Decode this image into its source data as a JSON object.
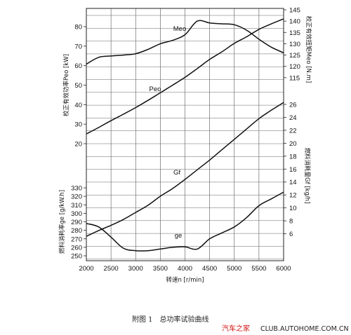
{
  "chart_data": {
    "type": "line",
    "x": [
      2000,
      2250,
      2500,
      2750,
      3000,
      3250,
      3500,
      3750,
      4000,
      4250,
      4500,
      4750,
      5000,
      5250,
      5500,
      5750,
      6000
    ],
    "xlabel": "转速n  [r/min]",
    "xticks": [
      2000,
      2500,
      3000,
      3500,
      4000,
      4500,
      5000,
      5500,
      6000
    ],
    "xlim": [
      2000,
      6000
    ],
    "grid": true,
    "axes": {
      "power": {
        "label": "校正有效功率Peo  [kW]",
        "side": "left",
        "lim": [
          20,
          80
        ],
        "ticks": [
          20,
          30,
          40,
          50,
          60,
          70,
          80
        ]
      },
      "torque": {
        "label": "校正有效扭矩Meo  [N.m]",
        "side": "right",
        "lim": [
          110,
          145
        ],
        "ticks": [
          115,
          120,
          125,
          130,
          135,
          140,
          145
        ]
      },
      "fuel": {
        "label": "燃料消耗量Gf  [kg/h]",
        "side": "right",
        "lim": [
          4,
          26
        ],
        "ticks": [
          6,
          8,
          10,
          12,
          14,
          16,
          18,
          20,
          22,
          24,
          26
        ]
      },
      "bsfc": {
        "label": "燃料消耗率ge  [g/kW.h]",
        "side": "left",
        "lim": [
          250,
          330
        ],
        "ticks": [
          250,
          260,
          270,
          280,
          290,
          300,
          310,
          320,
          330
        ]
      }
    },
    "series": [
      {
        "name": "Meo",
        "axis": "torque",
        "values": [
          121,
          124,
          124.6,
          125,
          125.6,
          127.5,
          130,
          131.5,
          134,
          140,
          139.2,
          138.8,
          138.4,
          136,
          132,
          128.5,
          126
        ]
      },
      {
        "name": "Peo",
        "axis": "power",
        "values": [
          25,
          28.3,
          31.8,
          35.1,
          38.5,
          42.2,
          46.1,
          50,
          54,
          58.5,
          63.2,
          67.1,
          71.4,
          74.8,
          78.6,
          81.4,
          84
        ]
      },
      {
        "name": "Gf",
        "axis": "fuel",
        "values": [
          5.6,
          6.5,
          7.3,
          8.2,
          9.3,
          10.4,
          11.8,
          13,
          14.4,
          15.9,
          17.4,
          19,
          20.6,
          22.2,
          23.8,
          25.1,
          26.3
        ]
      },
      {
        "name": "ge",
        "axis": "bsfc",
        "values": [
          288,
          284,
          272,
          259,
          256,
          256,
          258,
          260,
          260.5,
          258,
          270,
          277,
          284,
          295,
          309,
          317,
          325
        ]
      }
    ]
  },
  "caption": "附图 1　总功率试验曲线",
  "watermark": {
    "site": "汽车之家",
    "url": "CLUB.AUTOHOME.COM.CN"
  }
}
